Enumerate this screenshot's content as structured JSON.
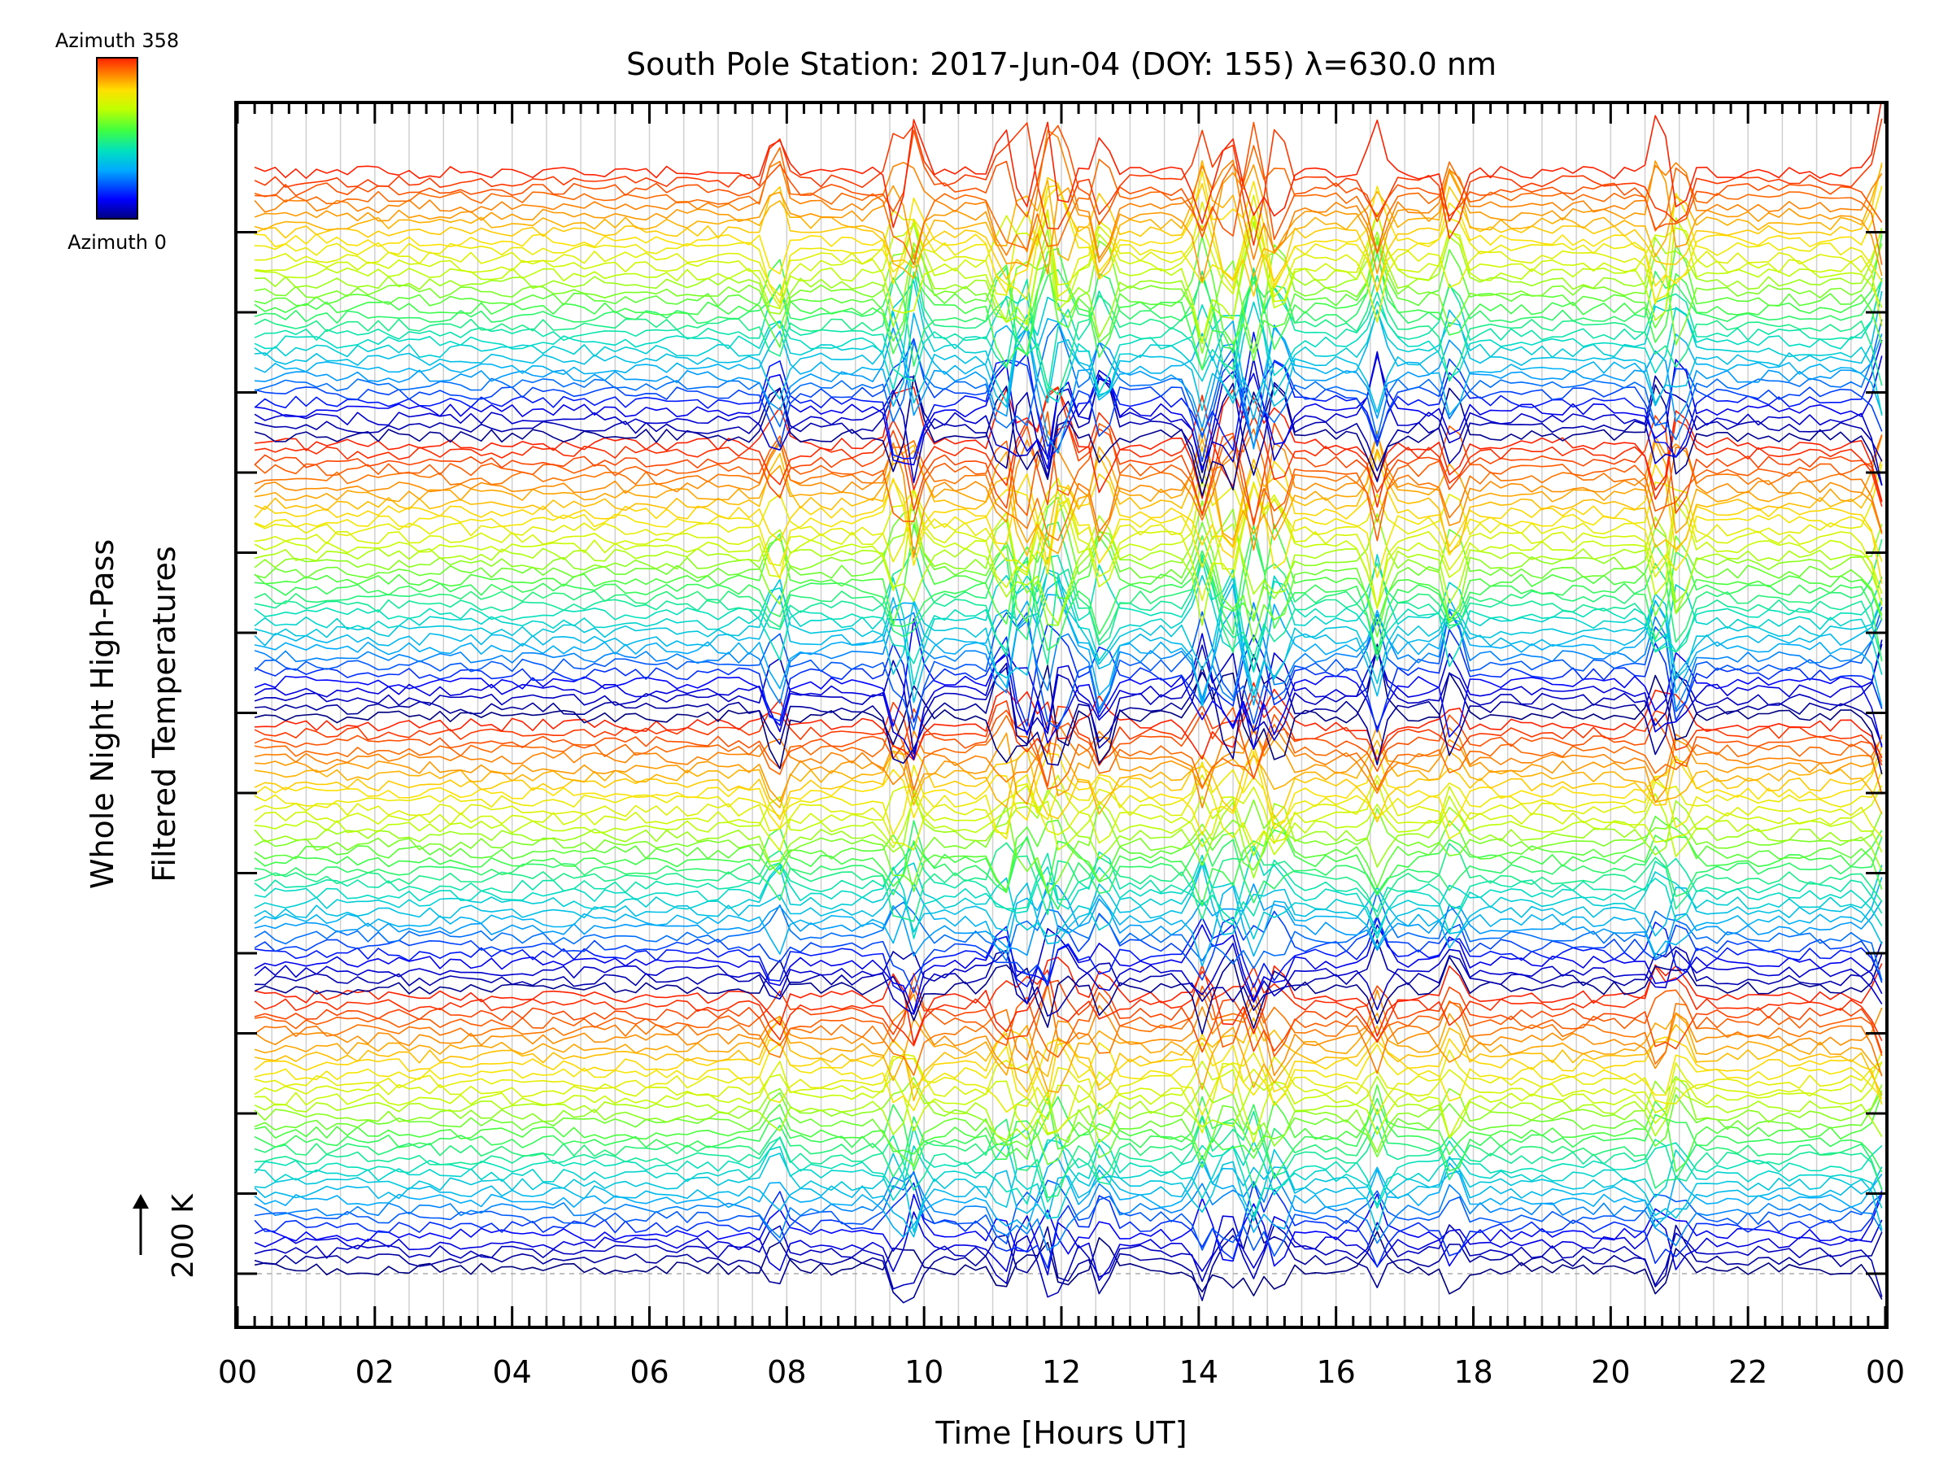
{
  "chart_data": {
    "type": "line",
    "title": "South Pole Station: 2017-Jun-04 (DOY: 155) λ=630.0 nm",
    "xlabel": "Time [Hours UT]",
    "ylabel_line1": "Whole Night High-Pass",
    "ylabel_line2": "Filtered Temperatures",
    "xlim": [
      0,
      24
    ],
    "x_tick_labels": [
      "00",
      "02",
      "04",
      "06",
      "08",
      "10",
      "12",
      "14",
      "16",
      "18",
      "20",
      "22",
      "00"
    ],
    "y_tick_labels_visible": false,
    "vertical_grid": true,
    "scale_bar_label": "200 K",
    "colorbar": {
      "top_label": "Azimuth 358",
      "bottom_label": "Azimuth 0",
      "colormap": "rainbow",
      "colors": [
        "#000080",
        "#0000ff",
        "#00aaff",
        "#00e0c0",
        "#40ff40",
        "#c0ff00",
        "#ffe000",
        "#ff8000",
        "#ff2000"
      ]
    },
    "series_count": 130,
    "series_group_count": 4,
    "sample_interval_hours": 0.15,
    "series_description": "Stacked high-pass filtered temperature traces, one per azimuth bin, colored by azimuth (0 to 358)",
    "disturbance_events_hours": [
      7.85,
      9.6,
      9.85,
      11.15,
      11.45,
      11.8,
      12.0,
      12.6,
      14.05,
      14.45,
      14.8,
      15.15,
      16.6,
      17.7,
      20.7,
      21.0,
      23.95
    ]
  }
}
